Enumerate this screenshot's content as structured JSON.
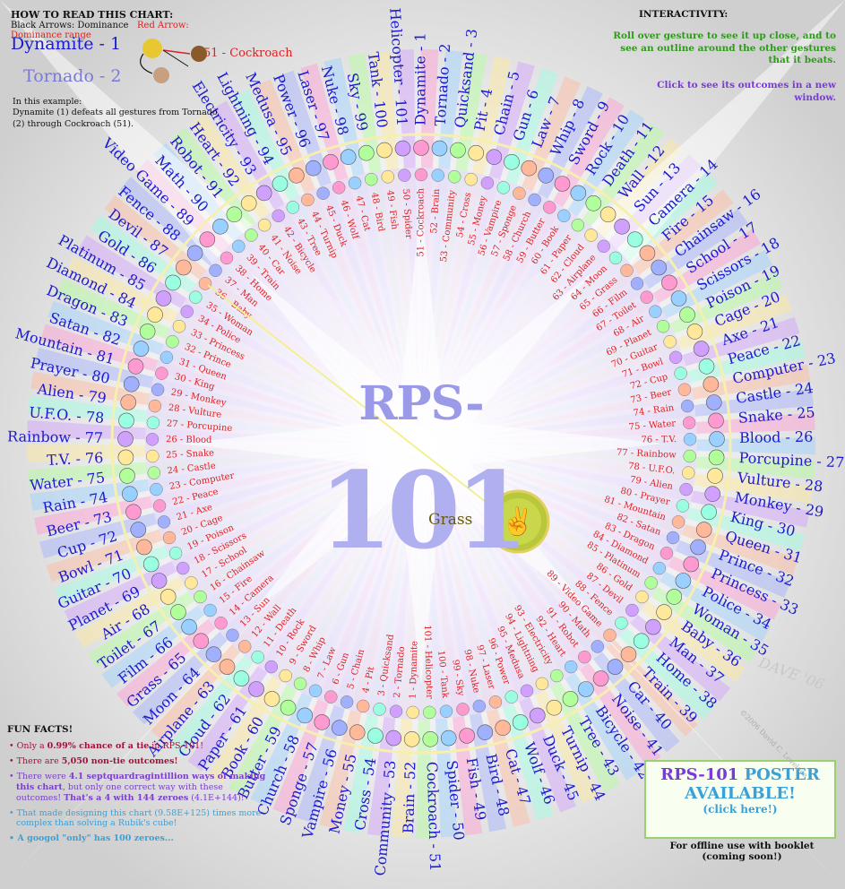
{
  "center": {
    "title_a": "RPS-",
    "title_b": "101",
    "selected": "Grass"
  },
  "howto": {
    "title": "HOW TO READ THIS CHART:",
    "black_arrows": "Black Arrows: Dominance",
    "red_arrow": "Red Arrow: Dominance range",
    "example_1": "Dynamite - 1",
    "example_2": "Tornado - 2",
    "example_3": "51 - Cockroach",
    "in_example": "In this example:",
    "explain": "Dynamite (1) defeats all gestures from Tornado (2) through Cockroach (51)."
  },
  "interactivity": {
    "title": "INTERACTIVITY:",
    "rollover": "Roll over gesture to see it up close, and to see an outline around the other gestures that it beats.",
    "click": "Click to see its outcomes in a new window."
  },
  "funfacts": {
    "title": "FUN FACTS!",
    "f1_a": "Only a ",
    "f1_b": "0.99% chance of a tie",
    "f1_c": " in RPS-101!",
    "f2_a": "There are ",
    "f2_b": "5,050 non-tie outcomes!",
    "f3_a": "There were ",
    "f3_b": "4.1 septquardragintillion ways of making this chart",
    "f3_c": ", but only one correct way with these outcomes! ",
    "f3_d": "That's a 4 with 144 zeroes",
    "f3_e": " (4.1E+144)!",
    "f4": "That made designing this chart (9.58E+125) times more complex than solving a Rubik's cube!",
    "f5": "A googol \"only\" has 100 zeroes..."
  },
  "poster": {
    "t1a": "RPS-101 ",
    "t1b": "POSTER",
    "t2": "AVAILABLE!",
    "t3": "(click here!)",
    "offline": "For offline use with booklet (coming soon!)"
  },
  "credit": "©2006 David C. Lovelace",
  "signature": "DAVE '06",
  "gestures": [
    "Dynamite",
    "Tornado",
    "Quicksand",
    "Pit",
    "Chain",
    "Gun",
    "Law",
    "Whip",
    "Sword",
    "Rock",
    "Death",
    "Wall",
    "Sun",
    "Camera",
    "Fire",
    "Chainsaw",
    "School",
    "Scissors",
    "Poison",
    "Cage",
    "Axe",
    "Peace",
    "Computer",
    "Castle",
    "Snake",
    "Blood",
    "Porcupine",
    "Vulture",
    "Monkey",
    "King",
    "Queen",
    "Prince",
    "Princess",
    "Police",
    "Woman",
    "Baby",
    "Man",
    "Home",
    "Train",
    "Car",
    "Noise",
    "Bicycle",
    "Tree",
    "Turnip",
    "Duck",
    "Wolf",
    "Cat",
    "Bird",
    "Fish",
    "Spider",
    "Cockroach",
    "Brain",
    "Community",
    "Cross",
    "Money",
    "Vampire",
    "Sponge",
    "Church",
    "Butter",
    "Book",
    "Paper",
    "Cloud",
    "Airplane",
    "Moon",
    "Grass",
    "Film",
    "Toilet",
    "Air",
    "Planet",
    "Guitar",
    "Bowl",
    "Cup",
    "Beer",
    "Rain",
    "Water",
    "T.V.",
    "Rainbow",
    "U.F.O.",
    "Alien",
    "Prayer",
    "Mountain",
    "Satan",
    "Dragon",
    "Diamond",
    "Platinum",
    "Gold",
    "Devil",
    "Fence",
    "Video Game",
    "Math",
    "Robot",
    "Heart",
    "Electricity",
    "Lightning",
    "Medusa",
    "Power",
    "Laser",
    "Nuke",
    "Sky",
    "Tank",
    "Helicopter"
  ],
  "colors": {
    "outer_blue": "#1a1ad0",
    "inner_red": "#e02020",
    "beam": "#f4f090",
    "title": "#9a9ae8"
  }
}
